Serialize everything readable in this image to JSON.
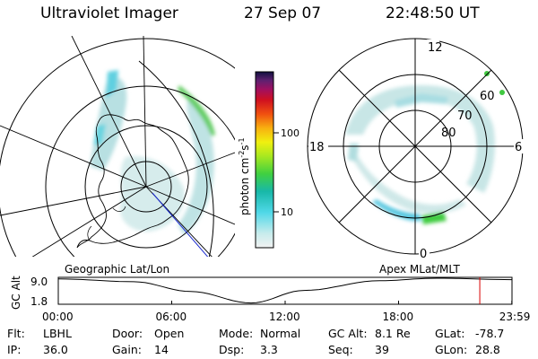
{
  "header": {
    "title": "Ultraviolet Imager",
    "date": "27 Sep 07",
    "time": "22:48:50 UT"
  },
  "colorbar": {
    "label": "photon cm",
    "label_exp1": "-2",
    "label_s": "s",
    "label_exp2": "-1",
    "tick_100": "100",
    "tick_10": "10"
  },
  "right_map": {
    "mlt_top": "12",
    "mlt_left": "18",
    "mlt_right": "6",
    "mlt_bottom": "0",
    "lat_60": "60",
    "lat_70": "70",
    "lat_80": "80"
  },
  "panel_labels": {
    "left": "Geographic Lat/Lon",
    "right": "Apex MLat/MLT"
  },
  "altitude_plot": {
    "ylabel": "GC Alt",
    "ytick_top": "9.0",
    "ytick_bottom": "1.8",
    "xticks": [
      "00:00",
      "06:00",
      "12:00",
      "18:00",
      "23:59"
    ],
    "current_fraction": 0.929,
    "x_range_hours": [
      0,
      24
    ],
    "y_range_re": [
      1.8,
      9.0
    ],
    "track": [
      [
        0,
        8.8
      ],
      [
        4,
        8.0
      ],
      [
        7,
        5.2
      ],
      [
        10.2,
        1.9
      ],
      [
        13,
        5.5
      ],
      [
        17,
        8.3
      ],
      [
        20,
        9.0
      ],
      [
        23.99,
        8.6
      ]
    ]
  },
  "footer": {
    "rows": [
      [
        {
          "label": "Flt:",
          "value": "LBHL"
        },
        {
          "label": "Door:",
          "value": "Open"
        },
        {
          "label": "Mode:",
          "value": "Normal"
        },
        {
          "label": "GC Alt:",
          "value": "8.1 Re"
        },
        {
          "label": "GLat:",
          "value": "-78.7"
        }
      ],
      [
        {
          "label": "IP:",
          "value": "36.0"
        },
        {
          "label": "Gain:",
          "value": "14"
        },
        {
          "label": "Dsp:",
          "value": "3.3"
        },
        {
          "label": "Seq:",
          "value": "39"
        },
        {
          "label": "GLon:",
          "value": "28.8"
        }
      ]
    ]
  },
  "colors": {
    "aurora_faint": "#d8ecec",
    "aurora_light": "#b0dde0",
    "aurora_mid": "#5fd0e0",
    "aurora_green": "#38c83a",
    "cursor_red": "#d80000",
    "longitude_blue": "#1a2ad0"
  }
}
